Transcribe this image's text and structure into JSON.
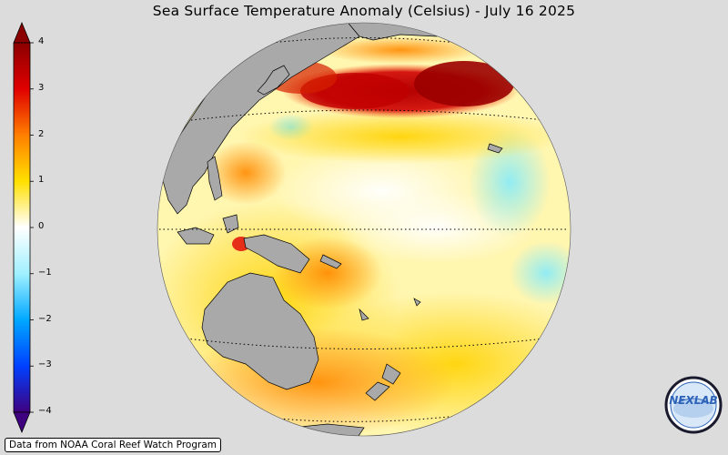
{
  "title": "Sea Surface Temperature Anomaly (Celsius) - July 16 2025",
  "credit": "Data from NOAA Coral Reef Watch Program",
  "logo": {
    "text": "NEXLAB"
  },
  "colorbar": {
    "min": -4,
    "max": 4,
    "ticks": [
      {
        "value": 4,
        "label": "4"
      },
      {
        "value": 3,
        "label": "3"
      },
      {
        "value": 2,
        "label": "2"
      },
      {
        "value": 1,
        "label": "1"
      },
      {
        "value": 0,
        "label": "0"
      },
      {
        "value": -1,
        "label": "−1"
      },
      {
        "value": -2,
        "label": "−2"
      },
      {
        "value": -3,
        "label": "−3"
      },
      {
        "value": -4,
        "label": "−4"
      }
    ],
    "colors": {
      "c4": "#8b0000",
      "c3": "#e00000",
      "c2": "#ff7f00",
      "c1": "#ffe000",
      "c0": "#ffffff",
      "cm1": "#a0f0ff",
      "cm2": "#00a8ff",
      "cm3": "#0040ff",
      "cm4": "#3f007f"
    }
  },
  "map": {
    "land_color": "#a9a9a9",
    "background_color": "#dcdcdc"
  }
}
